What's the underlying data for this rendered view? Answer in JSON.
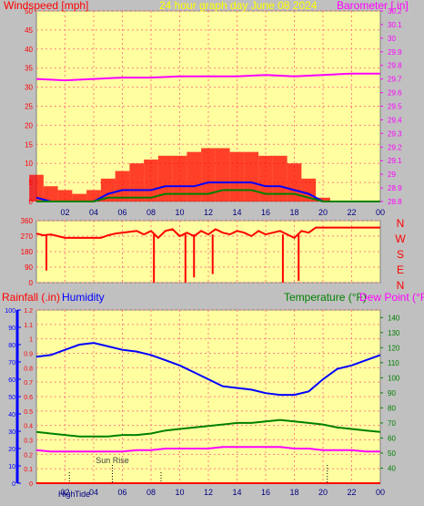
{
  "chart_data": [
    {
      "type": "line",
      "panel": "wind-barometer",
      "title": "24 hour graph day   June 08 2024",
      "left_axis_title": "Windspeed [mph]",
      "right_axis_title": "Barometer [.in]",
      "x_ticks": [
        "02",
        "04",
        "06",
        "08",
        "10",
        "12",
        "14",
        "16",
        "18",
        "20",
        "22",
        "00"
      ],
      "x_range": [
        0,
        24
      ],
      "y_left_range": [
        0,
        50
      ],
      "y_left_ticks": [
        "0",
        "5",
        "10",
        "15",
        "20",
        "25",
        "30",
        "35",
        "40",
        "45",
        "50"
      ],
      "y_right_range": [
        28.8,
        30.2
      ],
      "y_right_ticks": [
        "28.8",
        "28.9",
        "29",
        "29.1",
        "29.2",
        "29.3",
        "29.4",
        "29.5",
        "29.6",
        "29.7",
        "29.8",
        "29.9",
        "30",
        "30.1",
        "30.2"
      ],
      "series": [
        {
          "color": "#ff0000",
          "style": "bars",
          "x": [
            0,
            1,
            2,
            3,
            4,
            5,
            6,
            7,
            8,
            9,
            10,
            11,
            12,
            13,
            14,
            15,
            16,
            17,
            18,
            19,
            20,
            21,
            22,
            23,
            24
          ],
          "values": [
            7,
            4,
            3,
            2,
            3,
            6,
            8,
            10,
            11,
            12,
            12,
            13,
            14,
            14,
            13,
            13,
            12,
            12,
            10,
            6,
            1,
            0,
            0,
            0,
            0
          ]
        },
        {
          "color": "#0000ff",
          "style": "line",
          "x": [
            0,
            1,
            2,
            3,
            4,
            5,
            6,
            7,
            8,
            9,
            10,
            11,
            12,
            13,
            14,
            15,
            16,
            17,
            18,
            19,
            20,
            21,
            22,
            23,
            24
          ],
          "values": [
            1,
            0,
            0,
            0,
            0,
            2,
            3,
            3,
            3,
            4,
            4,
            4,
            5,
            5,
            5,
            5,
            4,
            4,
            3,
            2,
            0,
            0,
            0,
            0,
            0
          ]
        },
        {
          "color": "#008000",
          "style": "line",
          "x": [
            0,
            1,
            2,
            3,
            4,
            5,
            6,
            7,
            8,
            9,
            10,
            11,
            12,
            13,
            14,
            15,
            16,
            17,
            18,
            19,
            20,
            21,
            22,
            23,
            24
          ],
          "values": [
            0,
            0,
            0,
            0,
            0,
            1,
            1,
            1,
            1,
            2,
            2,
            2,
            2,
            3,
            3,
            3,
            2,
            2,
            2,
            1,
            0,
            0,
            0,
            0,
            0
          ]
        },
        {
          "color": "#ff00ff",
          "style": "line",
          "axis": "right",
          "x": [
            0,
            2,
            4,
            6,
            8,
            10,
            12,
            14,
            16,
            18,
            20,
            22,
            24
          ],
          "values": [
            29.7,
            29.69,
            29.7,
            29.71,
            29.71,
            29.72,
            29.72,
            29.72,
            29.73,
            29.72,
            29.73,
            29.74,
            29.74
          ]
        }
      ]
    },
    {
      "type": "line",
      "panel": "wind-direction",
      "x_range": [
        0,
        24
      ],
      "y_left_range": [
        0,
        360
      ],
      "y_left_ticks": [
        "0",
        "90",
        "180",
        "270",
        "360"
      ],
      "direction_labels": [
        "N",
        "W",
        "S",
        "E",
        "N"
      ],
      "series": [
        {
          "color": "#ff0000",
          "x": [
            0,
            0.5,
            1,
            1.5,
            2,
            2.5,
            3,
            3.5,
            4,
            4.5,
            5,
            5.5,
            6,
            6.5,
            7,
            7.5,
            8,
            8.5,
            9,
            9.5,
            10,
            10.5,
            11,
            11.5,
            12,
            12.5,
            13,
            13.5,
            14,
            14.5,
            15,
            15.5,
            16,
            16.5,
            17,
            17.5,
            18,
            18.5,
            19,
            19.5,
            20,
            20.5,
            21,
            22,
            23,
            24
          ],
          "values": [
            285,
            275,
            280,
            270,
            260,
            260,
            260,
            260,
            260,
            260,
            275,
            285,
            290,
            295,
            300,
            280,
            300,
            260,
            300,
            310,
            270,
            290,
            270,
            300,
            280,
            310,
            290,
            280,
            300,
            290,
            270,
            300,
            280,
            290,
            300,
            280,
            260,
            300,
            290,
            320,
            320,
            320,
            320,
            320,
            320,
            320
          ]
        },
        {
          "color": "#ff0000",
          "style": "dips",
          "x": [
            0.7,
            8.2,
            10.4,
            11.0,
            12.3,
            17.2,
            18.3
          ],
          "values": [
            70,
            0,
            0,
            30,
            50,
            0,
            10
          ]
        }
      ]
    },
    {
      "type": "line",
      "panel": "temp-humidity",
      "left_axis_titles": [
        "Rainfall (.in)",
        "Humidity"
      ],
      "right_axis_titles": [
        "Temperature (°F)",
        "Dew Point (°F)"
      ],
      "x_ticks": [
        "02",
        "04",
        "06",
        "08",
        "10",
        "12",
        "14",
        "16",
        "18",
        "20",
        "22",
        "00"
      ],
      "x_range": [
        0,
        24
      ],
      "rain_range": [
        0,
        1.2
      ],
      "rain_ticks": [
        "0",
        "0.1",
        "0.2",
        "0.3",
        "0.4",
        "0.5",
        "0.6",
        "0.7",
        "0.8",
        "0.9",
        "1",
        "1.1",
        "1.2"
      ],
      "humidity_range": [
        0,
        100
      ],
      "humidity_ticks": [
        "0",
        "10",
        "20",
        "30",
        "40",
        "50",
        "60",
        "70",
        "80",
        "90",
        "100"
      ],
      "temp_range": [
        30,
        145
      ],
      "temp_ticks": [
        "40",
        "50",
        "60",
        "70",
        "80",
        "90",
        "100",
        "110",
        "120",
        "130",
        "140"
      ],
      "annotations": {
        "sun_rise": {
          "label": "Sun Rise",
          "x": 5.3
        },
        "sun_set": {
          "x": 20.3
        },
        "high_tide": {
          "label": "High",
          "x": 2.3
        },
        "low_tide": {
          "label": "Tide",
          "x": 8.7
        }
      },
      "series": [
        {
          "color": "#0000ff",
          "axis": "humidity",
          "x": [
            0,
            1,
            2,
            3,
            4,
            5,
            6,
            7,
            8,
            9,
            10,
            11,
            12,
            13,
            14,
            15,
            16,
            17,
            18,
            19,
            20,
            21,
            22,
            23,
            24
          ],
          "values": [
            73,
            74,
            77,
            80,
            81,
            79,
            77,
            76,
            74,
            71,
            68,
            64,
            60,
            56,
            55,
            54,
            52,
            51,
            51,
            53,
            60,
            66,
            68,
            71,
            74
          ]
        },
        {
          "color": "#008000",
          "axis": "temperature",
          "x": [
            0,
            1,
            2,
            3,
            4,
            5,
            6,
            7,
            8,
            9,
            10,
            11,
            12,
            13,
            14,
            15,
            16,
            17,
            18,
            19,
            20,
            21,
            22,
            23,
            24
          ],
          "values": [
            64,
            63,
            62,
            61,
            61,
            61,
            62,
            62,
            63,
            65,
            66,
            67,
            68,
            69,
            70,
            70,
            71,
            72,
            71,
            70,
            69,
            67,
            66,
            65,
            64
          ]
        },
        {
          "color": "#ff00ff",
          "axis": "temperature",
          "x": [
            0,
            1,
            2,
            3,
            4,
            5,
            6,
            7,
            8,
            9,
            10,
            11,
            12,
            13,
            14,
            15,
            16,
            17,
            18,
            19,
            20,
            21,
            22,
            23,
            24
          ],
          "values": [
            52,
            51,
            51,
            51,
            51,
            51,
            51,
            52,
            52,
            53,
            53,
            53,
            53,
            54,
            54,
            54,
            54,
            54,
            53,
            53,
            52,
            52,
            52,
            51,
            51
          ]
        },
        {
          "color": "#ff0000",
          "axis": "rain",
          "x": [
            0,
            24
          ],
          "values": [
            0,
            0
          ]
        }
      ]
    }
  ],
  "colors": {
    "plot_bg": "#ffffa0",
    "frame_bg": "#c0c0c0",
    "grid": "#ff8080",
    "title": "#ffff00",
    "wind": "#ff0000",
    "barometer": "#ff00ff",
    "humidity": "#0000ff",
    "temperature": "#008000",
    "dew_point": "#ff00ff",
    "rain": "#ff0000"
  }
}
